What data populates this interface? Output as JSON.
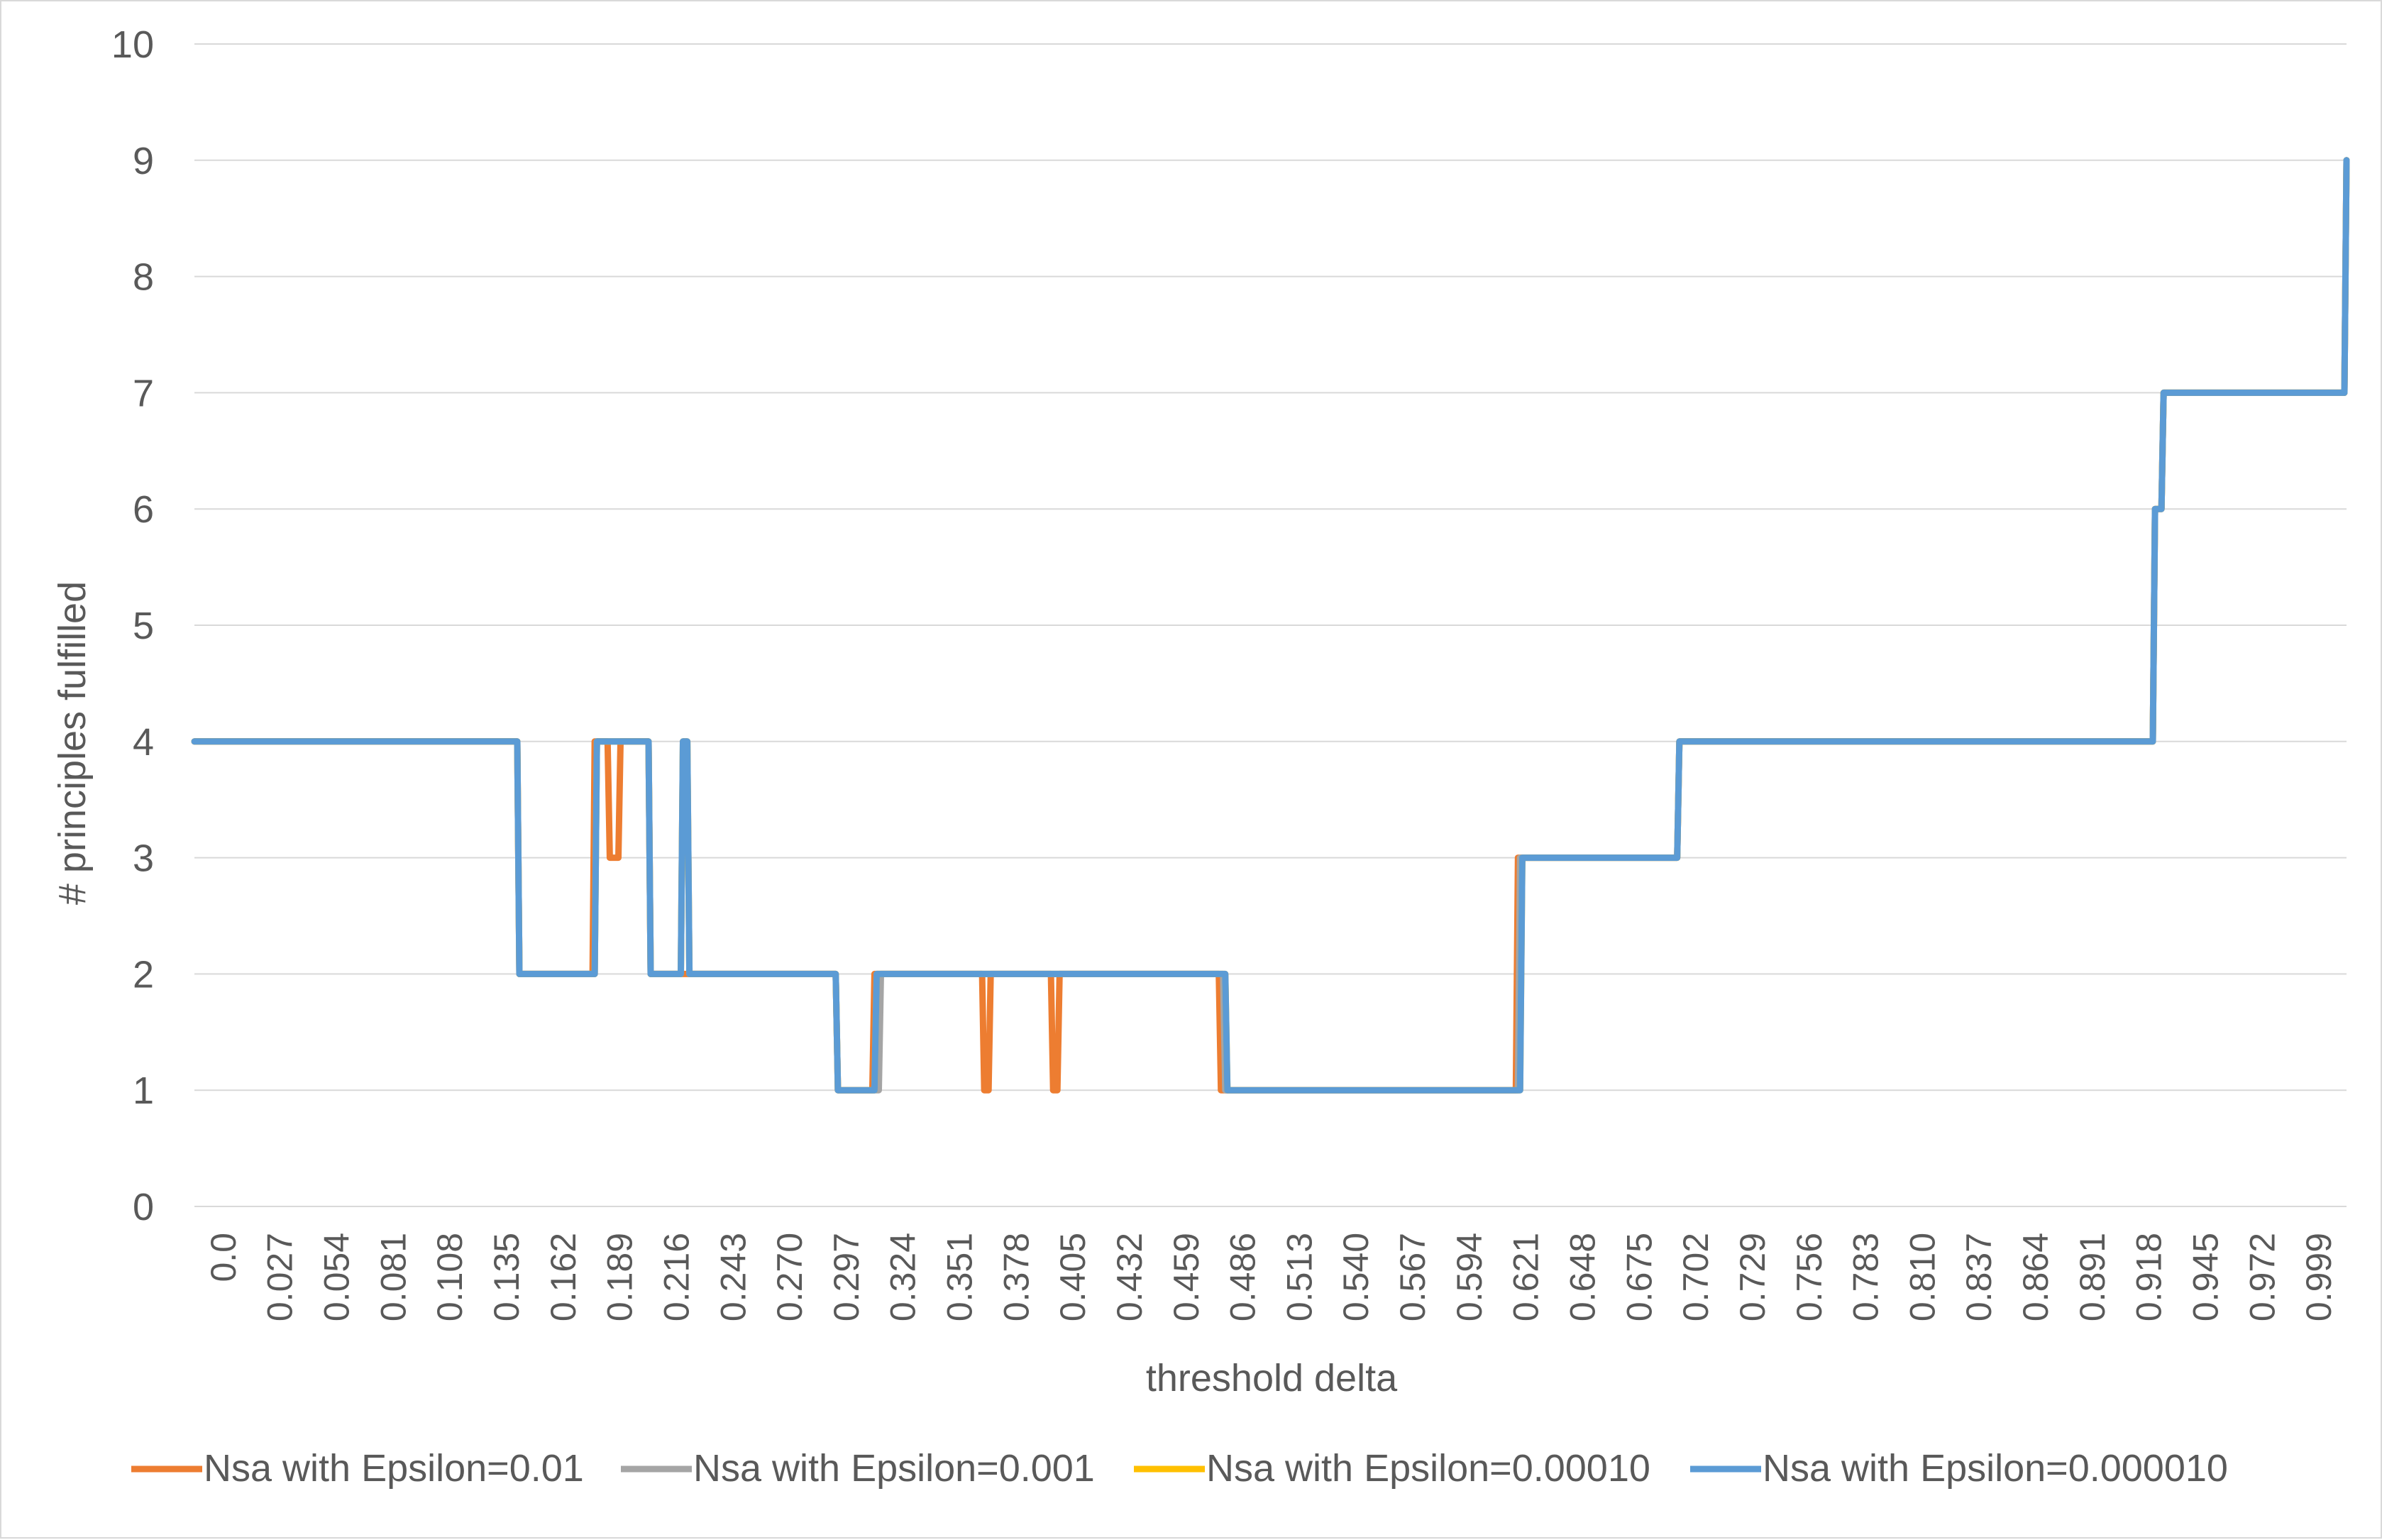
{
  "chart_data": {
    "type": "line",
    "title": "",
    "xlabel": "threshold delta",
    "ylabel": "# principles fulfilled",
    "ylim": [
      0,
      10
    ],
    "yticks": [
      0,
      1,
      2,
      3,
      4,
      5,
      6,
      7,
      8,
      9,
      10
    ],
    "xlim": [
      0,
      1
    ],
    "xtick_labels": [
      "0.0",
      "0.027",
      "0.054",
      "0.081",
      "0.108",
      "0.135",
      "0.162",
      "0.189",
      "0.216",
      "0.243",
      "0.270",
      "0.297",
      "0.324",
      "0.351",
      "0.378",
      "0.405",
      "0.432",
      "0.459",
      "0.486",
      "0.513",
      "0.540",
      "0.567",
      "0.594",
      "0.621",
      "0.648",
      "0.675",
      "0.702",
      "0.729",
      "0.756",
      "0.783",
      "0.810",
      "0.837",
      "0.864",
      "0.891",
      "0.918",
      "0.945",
      "0.972",
      "0.999"
    ],
    "grid": "horizontal",
    "legend_position": "bottom",
    "colors": {
      "grid": "#d9d9d9",
      "text": "#595959",
      "border": "#d9d9d9"
    },
    "series": [
      {
        "name": "Nsa with Epsilon=0.01",
        "color": "#ed7d31",
        "x": [
          0.0,
          0.15,
          0.151,
          0.185,
          0.186,
          0.192,
          0.193,
          0.197,
          0.198,
          0.211,
          0.212,
          0.233,
          0.234,
          0.298,
          0.299,
          0.315,
          0.316,
          0.366,
          0.367,
          0.369,
          0.37,
          0.398,
          0.399,
          0.401,
          0.402,
          0.476,
          0.477,
          0.614,
          0.615,
          0.689,
          0.69,
          0.91,
          0.911,
          0.914,
          0.915,
          0.999,
          1.0
        ],
        "y": [
          4,
          4,
          2,
          2,
          4,
          4,
          3,
          3,
          4,
          4,
          2,
          2,
          2,
          2,
          1,
          1,
          2,
          2,
          1,
          1,
          2,
          2,
          1,
          1,
          2,
          2,
          1,
          1,
          3,
          3,
          4,
          4,
          6,
          6,
          7,
          7,
          9
        ]
      },
      {
        "name": "Nsa with Epsilon=0.001",
        "color": "#a5a5a5",
        "x": [
          0.0,
          0.15,
          0.151,
          0.186,
          0.187,
          0.211,
          0.212,
          0.226,
          0.227,
          0.229,
          0.23,
          0.298,
          0.299,
          0.318,
          0.319,
          0.32,
          0.321,
          0.478,
          0.479,
          0.615,
          0.616,
          0.689,
          0.69,
          0.91,
          0.911,
          0.914,
          0.915,
          0.999,
          1.0
        ],
        "y": [
          4,
          4,
          2,
          2,
          4,
          4,
          2,
          2,
          4,
          4,
          2,
          2,
          1,
          1,
          2,
          2,
          2,
          2,
          1,
          1,
          3,
          3,
          4,
          4,
          6,
          6,
          7,
          7,
          9
        ]
      },
      {
        "name": "Nsa with Epsilon=0.00010",
        "color": "#ffc000",
        "x": [
          0.0,
          0.15,
          0.151,
          0.186,
          0.187,
          0.211,
          0.212,
          0.226,
          0.227,
          0.229,
          0.23,
          0.298,
          0.299,
          0.316,
          0.317,
          0.479,
          0.48,
          0.616,
          0.617,
          0.689,
          0.69,
          0.91,
          0.911,
          0.914,
          0.915,
          0.999,
          1.0
        ],
        "y": [
          4,
          4,
          2,
          2,
          4,
          4,
          2,
          2,
          4,
          4,
          2,
          2,
          1,
          1,
          2,
          2,
          1,
          1,
          3,
          3,
          4,
          4,
          6,
          6,
          7,
          7,
          9
        ]
      },
      {
        "name": "Nsa with Epsilon=0.000010",
        "color": "#5b9bd5",
        "x": [
          0.0,
          0.15,
          0.151,
          0.186,
          0.187,
          0.211,
          0.212,
          0.226,
          0.227,
          0.229,
          0.23,
          0.298,
          0.299,
          0.316,
          0.317,
          0.479,
          0.48,
          0.616,
          0.617,
          0.689,
          0.69,
          0.91,
          0.911,
          0.914,
          0.915,
          0.999,
          1.0
        ],
        "y": [
          4,
          4,
          2,
          2,
          4,
          4,
          2,
          2,
          4,
          4,
          2,
          2,
          1,
          1,
          2,
          2,
          1,
          1,
          3,
          3,
          4,
          4,
          6,
          6,
          7,
          7,
          9
        ]
      }
    ]
  }
}
